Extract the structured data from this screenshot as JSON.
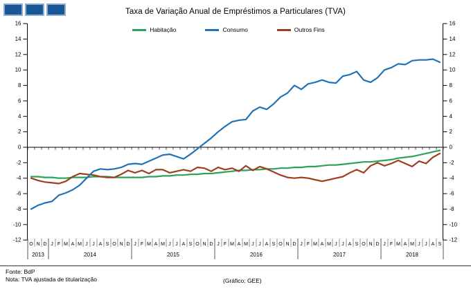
{
  "logo": {
    "fill": "#1A5796",
    "border": "#93AECE"
  },
  "legend": [
    {
      "label": "Habitação",
      "color": "#29A356"
    },
    {
      "label": "Consumo",
      "color": "#1F72B8"
    },
    {
      "label": "Outros Fins",
      "color": "#9E3D1F"
    }
  ],
  "footer": {
    "source": "Fonte: BdP",
    "note": "Nota: TVA ajustada de titularização",
    "credit": "(Gráfico: GEE)"
  },
  "chart_data": {
    "type": "line",
    "title": "Taxa de Variação Anual de Empréstimos a Particulares (TVA)",
    "xlabel": "",
    "ylabel": "",
    "ylim": [
      -12,
      16
    ],
    "ytick_step": 2,
    "grid": false,
    "legend_position": "top",
    "x_months": [
      "O",
      "N",
      "D",
      "J",
      "F",
      "M",
      "A",
      "M",
      "J",
      "J",
      "A",
      "S",
      "O",
      "N",
      "D",
      "J",
      "F",
      "M",
      "A",
      "M",
      "J",
      "J",
      "A",
      "S",
      "O",
      "N",
      "D",
      "J",
      "F",
      "M",
      "A",
      "M",
      "J",
      "J",
      "A",
      "S",
      "O",
      "N",
      "D",
      "J",
      "F",
      "M",
      "A",
      "M",
      "J",
      "J",
      "A",
      "S",
      "O",
      "N",
      "D",
      "J",
      "F",
      "M",
      "A",
      "M",
      "J",
      "J",
      "A",
      "S"
    ],
    "x_years": [
      {
        "label": "2013",
        "n_months": 3
      },
      {
        "label": "2014",
        "n_months": 12
      },
      {
        "label": "2015",
        "n_months": 12
      },
      {
        "label": "2016",
        "n_months": 12
      },
      {
        "label": "2017",
        "n_months": 12
      },
      {
        "label": "2018",
        "n_months": 9
      }
    ],
    "series": [
      {
        "name": "Habitação",
        "color": "#29A356",
        "values": [
          -3.8,
          -3.8,
          -3.9,
          -3.9,
          -4.0,
          -4.0,
          -3.9,
          -3.9,
          -3.9,
          -3.8,
          -3.8,
          -3.8,
          -3.9,
          -3.9,
          -3.9,
          -3.9,
          -3.9,
          -3.8,
          -3.8,
          -3.7,
          -3.7,
          -3.6,
          -3.6,
          -3.5,
          -3.5,
          -3.4,
          -3.4,
          -3.3,
          -3.2,
          -3.1,
          -3.0,
          -3.0,
          -2.9,
          -2.9,
          -2.8,
          -2.8,
          -2.7,
          -2.7,
          -2.6,
          -2.6,
          -2.5,
          -2.5,
          -2.4,
          -2.3,
          -2.3,
          -2.2,
          -2.1,
          -2.0,
          -1.9,
          -1.9,
          -1.8,
          -1.7,
          -1.6,
          -1.4,
          -1.3,
          -1.2,
          -1.0,
          -0.8,
          -0.6,
          -0.4
        ]
      },
      {
        "name": "Consumo",
        "color": "#1F72B8",
        "values": [
          -8.0,
          -7.5,
          -7.2,
          -7.0,
          -6.2,
          -5.9,
          -5.5,
          -4.9,
          -4.0,
          -3.1,
          -2.8,
          -2.9,
          -2.8,
          -2.6,
          -2.2,
          -2.1,
          -2.2,
          -1.8,
          -1.4,
          -1.0,
          -0.9,
          -1.2,
          -1.5,
          -0.9,
          -0.2,
          0.5,
          1.2,
          2.0,
          2.7,
          3.3,
          3.5,
          3.6,
          4.7,
          5.2,
          4.9,
          5.6,
          6.5,
          7.0,
          8.0,
          7.5,
          8.2,
          8.4,
          8.7,
          8.4,
          8.3,
          9.2,
          9.4,
          9.8,
          8.7,
          8.4,
          9.0,
          10.0,
          10.3,
          10.8,
          10.7,
          11.2,
          11.3,
          11.3,
          11.4,
          11.0
        ]
      },
      {
        "name": "Outros Fins",
        "color": "#9E3D1F",
        "values": [
          -4.0,
          -4.3,
          -4.5,
          -4.6,
          -4.7,
          -4.4,
          -3.8,
          -3.4,
          -3.5,
          -3.6,
          -3.8,
          -3.9,
          -3.9,
          -3.5,
          -3.0,
          -3.3,
          -3.0,
          -3.4,
          -2.9,
          -2.9,
          -3.3,
          -3.1,
          -2.9,
          -3.1,
          -2.6,
          -2.7,
          -3.1,
          -2.6,
          -2.9,
          -2.7,
          -3.1,
          -2.4,
          -3.0,
          -2.5,
          -2.8,
          -3.2,
          -3.6,
          -3.9,
          -4.0,
          -3.9,
          -4.0,
          -4.2,
          -4.4,
          -4.2,
          -4.0,
          -3.8,
          -3.3,
          -2.9,
          -3.3,
          -2.4,
          -2.0,
          -2.4,
          -2.1,
          -1.7,
          -2.1,
          -2.5,
          -1.8,
          -2.1,
          -1.3,
          -0.8
        ]
      }
    ]
  }
}
